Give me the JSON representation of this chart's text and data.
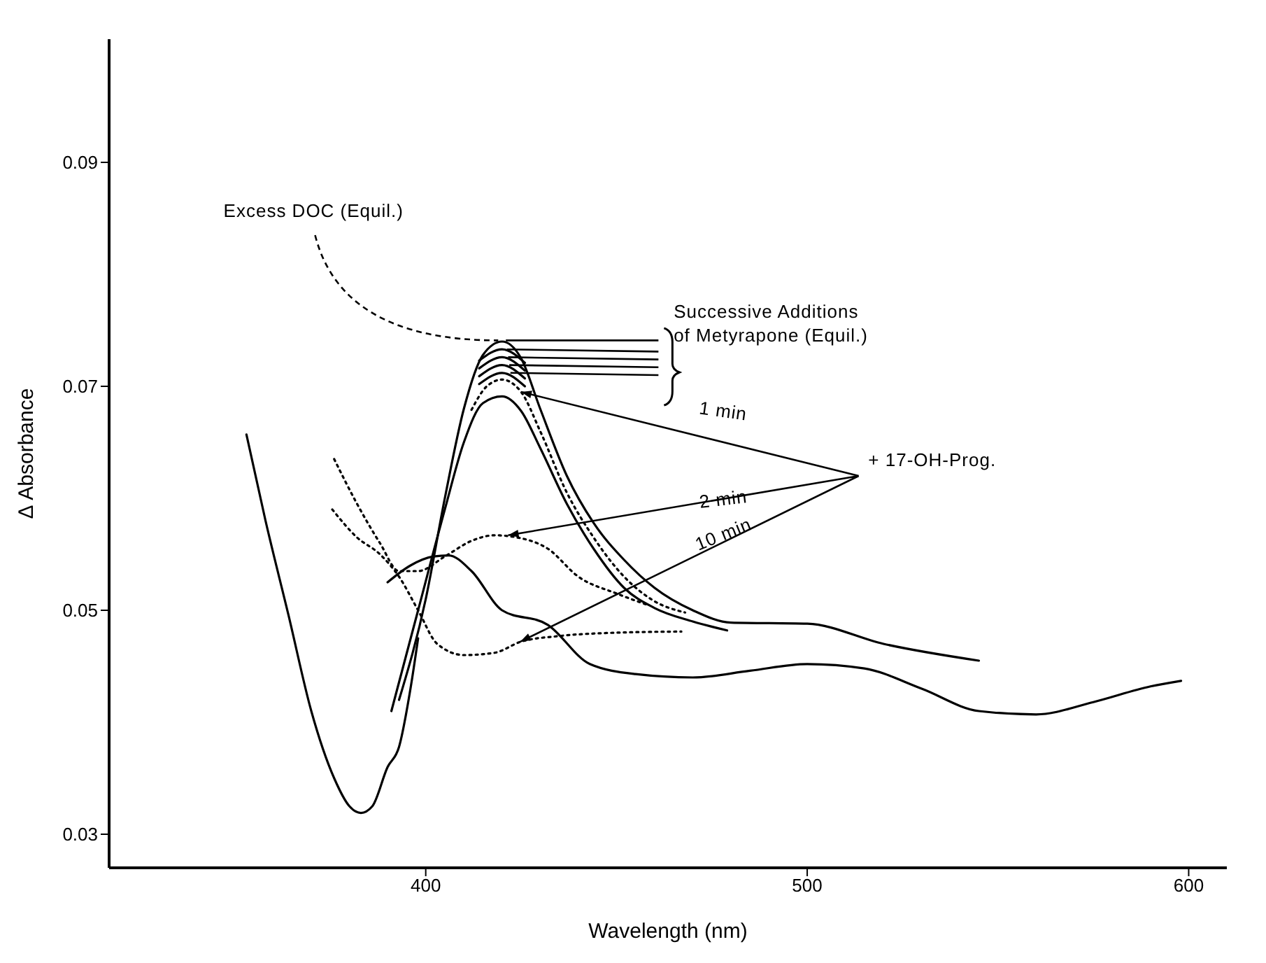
{
  "chart_data": {
    "type": "line",
    "xlabel": "Wavelength (nm)",
    "ylabel": "Δ Absorbance",
    "xlim": [
      317,
      610
    ],
    "ylim": [
      0.027,
      0.101
    ],
    "xticks": [
      400,
      500,
      600
    ],
    "yticks": [
      0.03,
      0.05,
      0.07,
      0.09
    ],
    "marker": "none",
    "annotations": [
      {
        "text": "Excess DOC (Equil.)",
        "x": 419,
        "y": 0.0741
      },
      {
        "text": "Successive Additions of Metyrapone (Equil.)",
        "x": 420,
        "y": 0.0733
      },
      {
        "text": "+ 17-OH-Prog.",
        "x": 425,
        "y": 0.0695
      },
      "1 min",
      "2 min",
      "10 min"
    ],
    "series": [
      {
        "color": "#000000",
        "line_style": "solid",
        "x": [
          353,
          358,
          364,
          370,
          376,
          380,
          383,
          386,
          390,
          393,
          396,
          398
        ],
        "values": [
          0.0657,
          0.058,
          0.0496,
          0.041,
          0.035,
          0.0325,
          0.0319,
          0.0325,
          0.036,
          0.0378,
          0.043,
          0.0475
        ]
      },
      {
        "color": "#000000",
        "line_style": "solid",
        "x": [
          390,
          396,
          402,
          406,
          412,
          420,
          432,
          443,
          455,
          470,
          485,
          500,
          515,
          530,
          545,
          560,
          575,
          590,
          598
        ],
        "values": [
          0.0525,
          0.054,
          0.0548,
          0.0549,
          0.0535,
          0.05,
          0.0487,
          0.0452,
          0.0443,
          0.044,
          0.0446,
          0.0452,
          0.0448,
          0.043,
          0.041,
          0.0407,
          0.0418,
          0.0432,
          0.0437
        ]
      },
      {
        "color": "#000000",
        "line_style": "solid",
        "x": [
          393,
          400,
          405,
          410,
          415,
          420,
          425,
          430,
          437,
          444,
          452,
          460,
          470,
          480,
          500,
          520,
          545
        ],
        "values": [
          0.042,
          0.051,
          0.06,
          0.068,
          0.0728,
          0.074,
          0.0725,
          0.068,
          0.062,
          0.0578,
          0.0545,
          0.052,
          0.05,
          0.0489,
          0.0488,
          0.047,
          0.0455
        ]
      },
      {
        "color": "#000000",
        "line_style": "solid",
        "x": [
          414,
          420,
          426
        ],
        "values": [
          0.0723,
          0.0733,
          0.0721
        ]
      },
      {
        "color": "#000000",
        "line_style": "solid",
        "x": [
          414,
          420,
          426
        ],
        "values": [
          0.0716,
          0.0726,
          0.0714
        ]
      },
      {
        "color": "#000000",
        "line_style": "solid",
        "x": [
          414,
          420,
          426
        ],
        "values": [
          0.0709,
          0.0719,
          0.0707
        ]
      },
      {
        "color": "#000000",
        "line_style": "solid",
        "x": [
          414,
          420,
          426
        ],
        "values": [
          0.0702,
          0.0712,
          0.07
        ]
      },
      {
        "color": "#000000",
        "line_style": "solid",
        "x": [
          391,
          398,
          405,
          410,
          415,
          420,
          425,
          430,
          437,
          444,
          452,
          460,
          470,
          479
        ],
        "values": [
          0.041,
          0.05,
          0.059,
          0.065,
          0.0685,
          0.0691,
          0.0678,
          0.0645,
          0.0595,
          0.0555,
          0.052,
          0.0502,
          0.049,
          0.0482
        ]
      },
      {
        "color": "#000000",
        "line_style": "dotted",
        "x": [
          412,
          416,
          420,
          425,
          430,
          437,
          444,
          452,
          460,
          468
        ],
        "values": [
          0.0679,
          0.07,
          0.0706,
          0.0695,
          0.066,
          0.0605,
          0.0565,
          0.053,
          0.0508,
          0.0498
        ]
      },
      {
        "color": "#000000",
        "line_style": "dotted",
        "x": [
          376,
          382,
          388,
          393,
          398,
          405,
          412,
          418,
          424,
          432,
          440,
          450,
          458
        ],
        "values": [
          0.0635,
          0.0595,
          0.056,
          0.0535,
          0.0535,
          0.0548,
          0.0562,
          0.0567,
          0.0565,
          0.0555,
          0.053,
          0.0515,
          0.0505
        ]
      },
      {
        "color": "#000000",
        "line_style": "dotted",
        "x": [
          375.5,
          382,
          388,
          393,
          398,
          403,
          410,
          418,
          425,
          435,
          450,
          467
        ],
        "values": [
          0.059,
          0.0565,
          0.055,
          0.053,
          0.05,
          0.047,
          0.046,
          0.0462,
          0.0472,
          0.0477,
          0.048,
          0.0481
        ]
      }
    ]
  }
}
